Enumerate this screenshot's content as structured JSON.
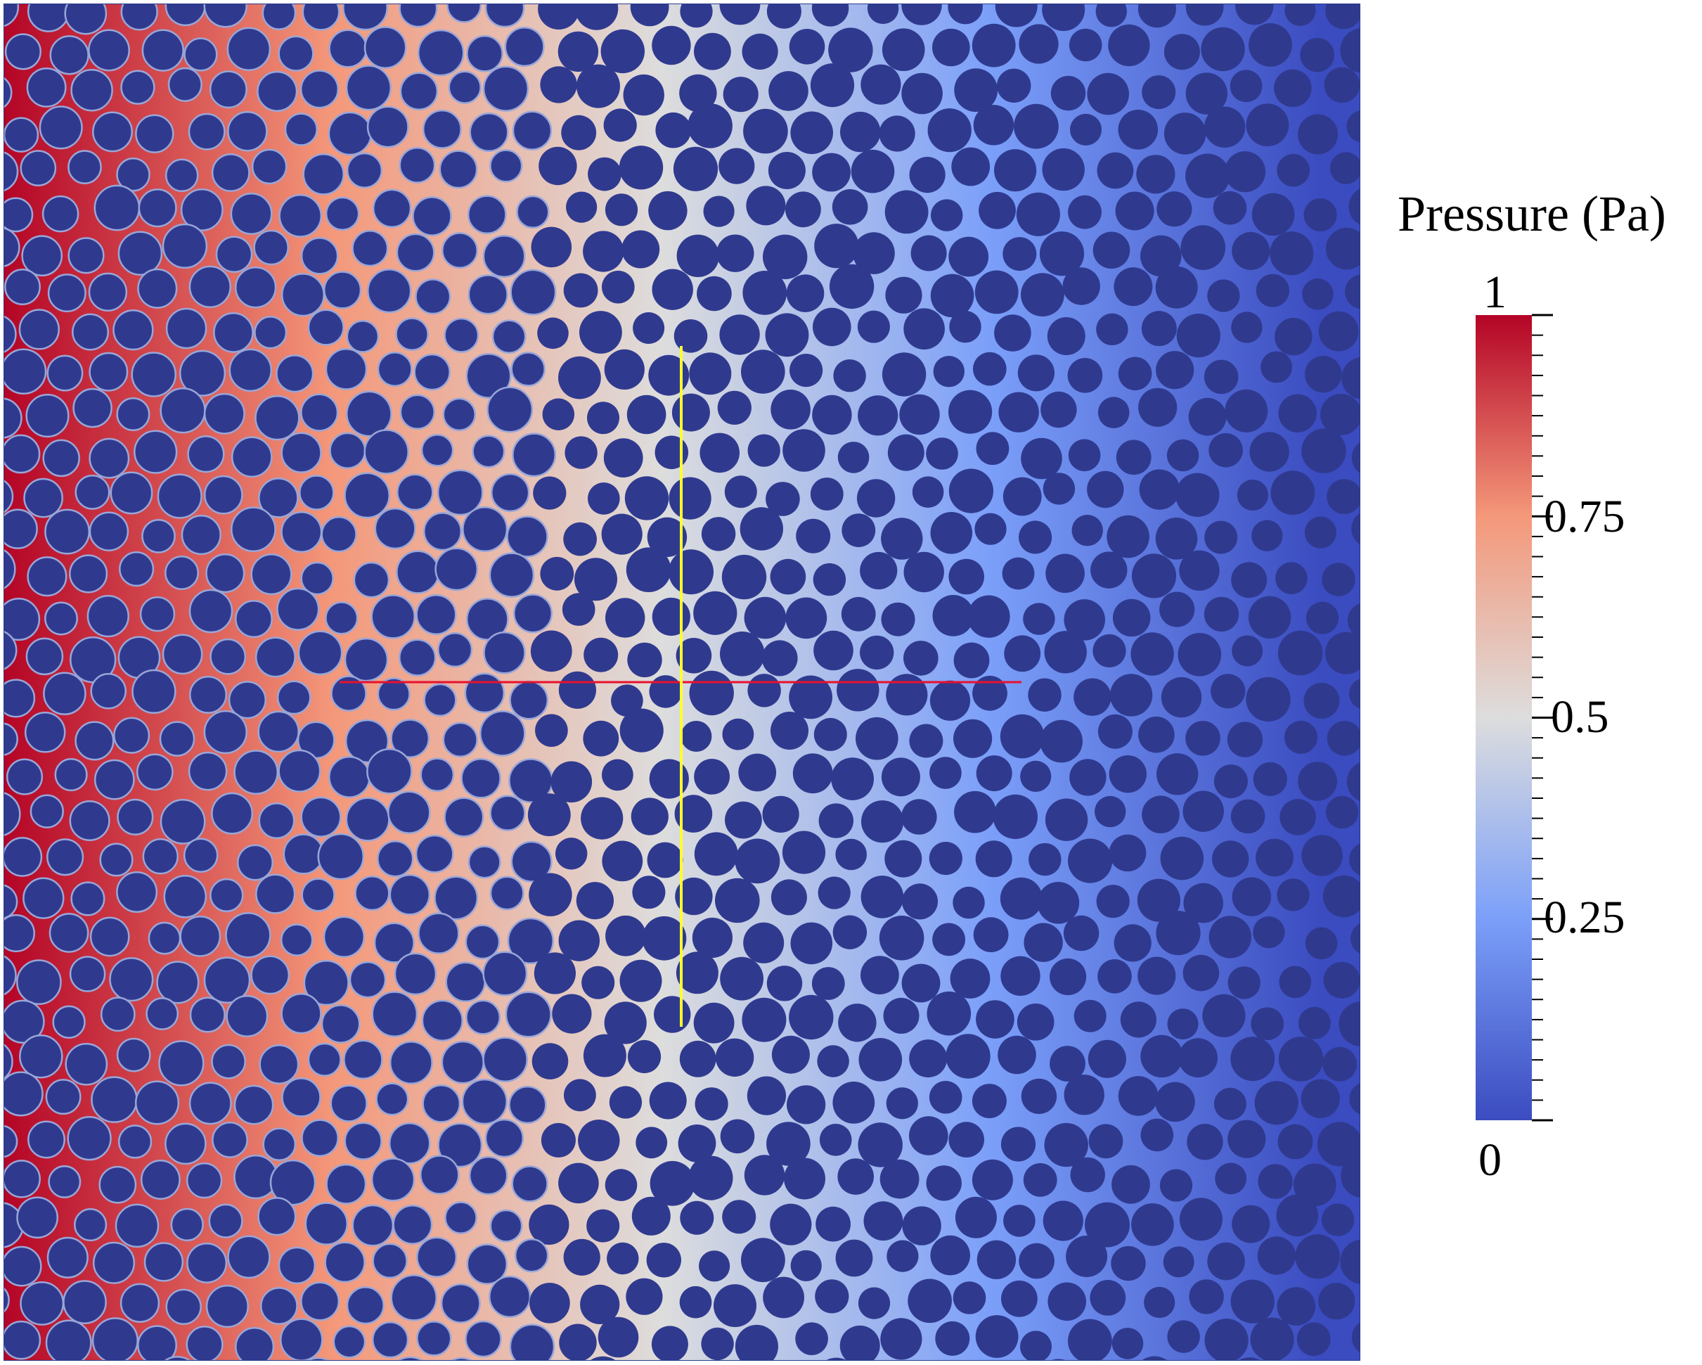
{
  "chart_data": {
    "type": "heatmap",
    "title": "",
    "field": "Pressure",
    "colorbar": {
      "title": "Pressure (Pa)",
      "range": [
        0,
        1
      ],
      "labeled_ticks": [
        {
          "value": 1,
          "label": "1"
        },
        {
          "value": 0.75,
          "label": "0.75"
        },
        {
          "value": 0.5,
          "label": "0.5"
        },
        {
          "value": 0.25,
          "label": "0.25"
        },
        {
          "value": 0,
          "label": "0"
        }
      ],
      "minor_tick_count": 40,
      "colormap_stops": [
        {
          "value": 0.0,
          "color": "#3b4cc0"
        },
        {
          "value": 0.25,
          "color": "#7b9ff9"
        },
        {
          "value": 0.5,
          "color": "#dddddd"
        },
        {
          "value": 0.75,
          "color": "#f4987a"
        },
        {
          "value": 1.0,
          "color": "#b40426"
        }
      ]
    },
    "domain": {
      "inlet_pressure": 1,
      "outlet_pressure": 0,
      "flow_direction": "left-to-right",
      "obstacle_color": "#2f3a8f",
      "obstacles": "randomly packed circular grains"
    },
    "probe_lines": [
      {
        "orientation": "horizontal",
        "color": "#e8112d"
      },
      {
        "orientation": "vertical",
        "color": "#ffff2a"
      }
    ]
  }
}
